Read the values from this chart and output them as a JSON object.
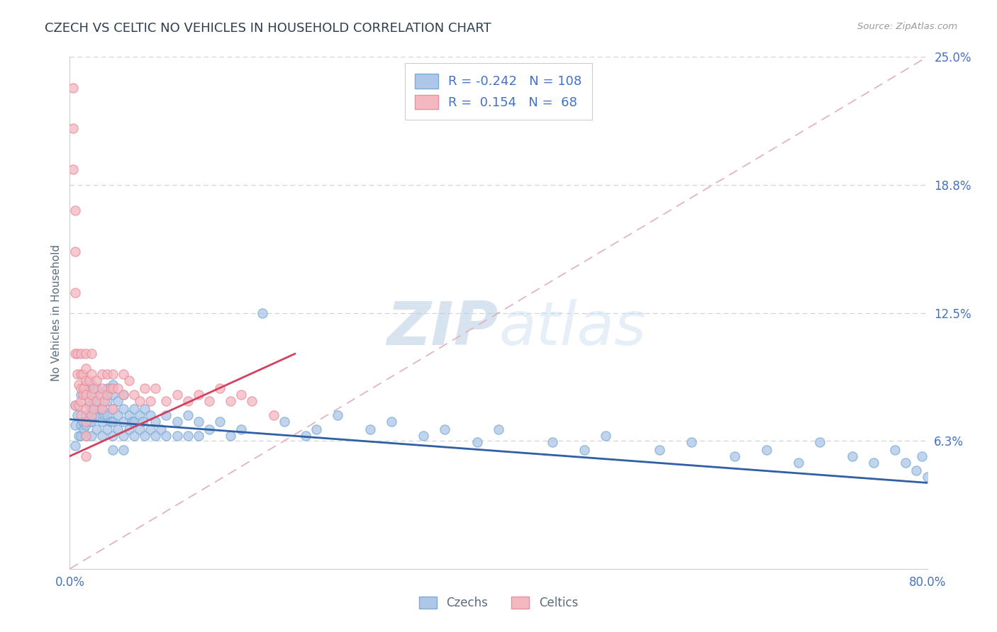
{
  "title": "CZECH VS CELTIC NO VEHICLES IN HOUSEHOLD CORRELATION CHART",
  "source": "Source: ZipAtlas.com",
  "ylabel": "No Vehicles in Household",
  "xlim": [
    0,
    0.8
  ],
  "ylim": [
    0,
    0.25
  ],
  "xticks": [
    0.0,
    0.8
  ],
  "xticklabels": [
    "0.0%",
    "80.0%"
  ],
  "yticks_right": [
    0.0625,
    0.125,
    0.1875,
    0.25
  ],
  "yticks_right_labels": [
    "6.3%",
    "12.5%",
    "18.8%",
    "25.0%"
  ],
  "czech_color": "#aec6e8",
  "celtic_color": "#f4b8c1",
  "czech_edge_color": "#7aadd4",
  "celtic_edge_color": "#e8909e",
  "czech_line_color": "#2f5fa5",
  "celtic_line_color": "#d44060",
  "diag_color": "#e0b0b8",
  "grid_color": "#d0d0d0",
  "title_color": "#2c3e50",
  "axis_label_color": "#5b6b7c",
  "tick_color": "#4472c4",
  "czech_R": -0.242,
  "czech_N": 108,
  "celtic_R": 0.154,
  "celtic_N": 68,
  "czech_trend_x0": 0.0,
  "czech_trend_y0": 0.073,
  "czech_trend_x1": 0.8,
  "czech_trend_y1": 0.042,
  "celtic_trend_x0": 0.0,
  "celtic_trend_y0": 0.055,
  "celtic_trend_x1": 0.21,
  "celtic_trend_y1": 0.105,
  "czech_scatter_x": [
    0.005,
    0.005,
    0.005,
    0.007,
    0.008,
    0.01,
    0.01,
    0.01,
    0.012,
    0.013,
    0.015,
    0.015,
    0.015,
    0.015,
    0.015,
    0.018,
    0.018,
    0.02,
    0.02,
    0.02,
    0.02,
    0.02,
    0.022,
    0.022,
    0.025,
    0.025,
    0.025,
    0.025,
    0.028,
    0.03,
    0.03,
    0.03,
    0.03,
    0.032,
    0.035,
    0.035,
    0.035,
    0.035,
    0.038,
    0.04,
    0.04,
    0.04,
    0.04,
    0.04,
    0.04,
    0.045,
    0.045,
    0.045,
    0.05,
    0.05,
    0.05,
    0.05,
    0.05,
    0.055,
    0.055,
    0.058,
    0.06,
    0.06,
    0.06,
    0.065,
    0.065,
    0.068,
    0.07,
    0.07,
    0.075,
    0.075,
    0.08,
    0.08,
    0.085,
    0.09,
    0.09,
    0.1,
    0.1,
    0.11,
    0.11,
    0.12,
    0.12,
    0.13,
    0.14,
    0.15,
    0.16,
    0.18,
    0.2,
    0.22,
    0.23,
    0.25,
    0.28,
    0.3,
    0.33,
    0.35,
    0.38,
    0.4,
    0.45,
    0.48,
    0.5,
    0.55,
    0.58,
    0.62,
    0.65,
    0.68,
    0.7,
    0.73,
    0.75,
    0.77,
    0.78,
    0.79,
    0.795,
    0.8
  ],
  "czech_scatter_y": [
    0.08,
    0.07,
    0.06,
    0.075,
    0.065,
    0.085,
    0.07,
    0.065,
    0.072,
    0.068,
    0.09,
    0.085,
    0.075,
    0.07,
    0.065,
    0.08,
    0.072,
    0.09,
    0.085,
    0.078,
    0.072,
    0.065,
    0.082,
    0.075,
    0.088,
    0.082,
    0.075,
    0.068,
    0.078,
    0.085,
    0.078,
    0.072,
    0.065,
    0.075,
    0.088,
    0.082,
    0.075,
    0.068,
    0.072,
    0.09,
    0.085,
    0.078,
    0.072,
    0.065,
    0.058,
    0.082,
    0.075,
    0.068,
    0.085,
    0.078,
    0.072,
    0.065,
    0.058,
    0.075,
    0.068,
    0.072,
    0.078,
    0.072,
    0.065,
    0.075,
    0.068,
    0.072,
    0.078,
    0.065,
    0.075,
    0.068,
    0.072,
    0.065,
    0.068,
    0.075,
    0.065,
    0.072,
    0.065,
    0.075,
    0.065,
    0.072,
    0.065,
    0.068,
    0.072,
    0.065,
    0.068,
    0.125,
    0.072,
    0.065,
    0.068,
    0.075,
    0.068,
    0.072,
    0.065,
    0.068,
    0.062,
    0.068,
    0.062,
    0.058,
    0.065,
    0.058,
    0.062,
    0.055,
    0.058,
    0.052,
    0.062,
    0.055,
    0.052,
    0.058,
    0.052,
    0.048,
    0.055,
    0.045
  ],
  "celtic_scatter_x": [
    0.003,
    0.003,
    0.003,
    0.005,
    0.005,
    0.005,
    0.005,
    0.005,
    0.007,
    0.007,
    0.008,
    0.008,
    0.01,
    0.01,
    0.01,
    0.01,
    0.01,
    0.012,
    0.012,
    0.013,
    0.015,
    0.015,
    0.015,
    0.015,
    0.015,
    0.015,
    0.015,
    0.015,
    0.018,
    0.018,
    0.02,
    0.02,
    0.02,
    0.02,
    0.022,
    0.022,
    0.025,
    0.025,
    0.028,
    0.03,
    0.03,
    0.03,
    0.032,
    0.035,
    0.035,
    0.038,
    0.04,
    0.04,
    0.04,
    0.045,
    0.05,
    0.05,
    0.055,
    0.06,
    0.065,
    0.07,
    0.075,
    0.08,
    0.09,
    0.1,
    0.11,
    0.12,
    0.13,
    0.14,
    0.15,
    0.16,
    0.17,
    0.19
  ],
  "celtic_scatter_y": [
    0.235,
    0.215,
    0.195,
    0.175,
    0.155,
    0.135,
    0.105,
    0.08,
    0.105,
    0.095,
    0.09,
    0.08,
    0.105,
    0.095,
    0.088,
    0.082,
    0.075,
    0.095,
    0.085,
    0.088,
    0.105,
    0.098,
    0.092,
    0.085,
    0.078,
    0.072,
    0.065,
    0.055,
    0.092,
    0.082,
    0.105,
    0.095,
    0.085,
    0.075,
    0.088,
    0.078,
    0.092,
    0.082,
    0.085,
    0.095,
    0.088,
    0.078,
    0.082,
    0.095,
    0.085,
    0.088,
    0.095,
    0.088,
    0.078,
    0.088,
    0.095,
    0.085,
    0.092,
    0.085,
    0.082,
    0.088,
    0.082,
    0.088,
    0.082,
    0.085,
    0.082,
    0.085,
    0.082,
    0.088,
    0.082,
    0.085,
    0.082,
    0.075
  ]
}
